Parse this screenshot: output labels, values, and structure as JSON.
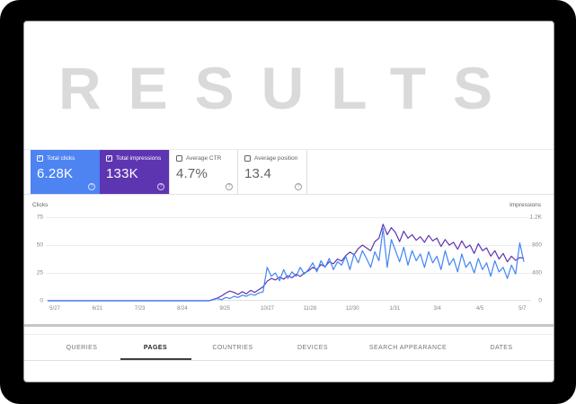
{
  "window": {
    "background": "#000000",
    "card_background": "#ffffff"
  },
  "watermark": {
    "text": "RESULTS",
    "color": "#dadada"
  },
  "metric_cards": [
    {
      "label": "Total clicks",
      "value": "6.28K",
      "checked": true,
      "bg": "#4d84f2",
      "text_color": "#ffffff"
    },
    {
      "label": "Total impressions",
      "value": "133K",
      "checked": true,
      "bg": "#5e35b1",
      "text_color": "#ffffff"
    },
    {
      "label": "Average CTR",
      "value": "4.7%",
      "checked": false,
      "bg": "#ffffff",
      "text_color": "#5f6368"
    },
    {
      "label": "Average position",
      "value": "13.4",
      "checked": false,
      "bg": "#ffffff",
      "text_color": "#5f6368"
    }
  ],
  "icons": {
    "help": "?",
    "checkbox_check": "✓"
  },
  "chart_data": {
    "type": "line",
    "dual_axis": true,
    "grid": true,
    "left_axis": {
      "label": "Clicks",
      "ticks": [
        "75",
        "50",
        "25",
        "0"
      ],
      "min": 0,
      "max": 75
    },
    "right_axis": {
      "label": "Impressions",
      "ticks": [
        "1.2K",
        "800",
        "400",
        "0"
      ],
      "min": 0,
      "max": 1200
    },
    "x_ticks": [
      "5/27",
      "6/21",
      "7/23",
      "8/24",
      "9/25",
      "10/27",
      "11/28",
      "12/30",
      "1/31",
      "3/4",
      "4/5",
      "5/7"
    ],
    "series": [
      {
        "name": "Total impressions",
        "axis": "right",
        "color": "#5e35b1",
        "values": [
          0,
          0,
          0,
          0,
          0,
          0,
          0,
          0,
          0,
          0,
          0,
          0,
          0,
          0,
          0,
          0,
          0,
          0,
          0,
          0,
          0,
          0,
          0,
          0,
          0,
          0,
          0,
          0,
          0,
          0,
          0,
          0,
          0,
          0,
          0,
          0,
          0,
          0,
          0,
          0,
          20,
          40,
          70,
          110,
          140,
          120,
          90,
          130,
          100,
          150,
          120,
          160,
          200,
          280,
          320,
          300,
          340,
          310,
          360,
          330,
          380,
          350,
          400,
          430,
          480,
          450,
          520,
          490,
          560,
          530,
          600,
          570,
          650,
          700,
          660,
          750,
          800,
          760,
          720,
          850,
          900,
          1100,
          950,
          1050,
          980,
          850,
          1000,
          900,
          950,
          870,
          920,
          840,
          940,
          860,
          900,
          780,
          880,
          800,
          840,
          740,
          860,
          760,
          800,
          680,
          820,
          720,
          760,
          640,
          720,
          600,
          680,
          560,
          640,
          580,
          620,
          610
        ]
      },
      {
        "name": "Total clicks",
        "axis": "left",
        "color": "#4285f4",
        "values": [
          0,
          0,
          0,
          0,
          0,
          0,
          0,
          0,
          0,
          0,
          0,
          0,
          0,
          0,
          0,
          0,
          0,
          0,
          0,
          0,
          0,
          0,
          0,
          0,
          0,
          0,
          0,
          0,
          0,
          0,
          0,
          0,
          0,
          0,
          0,
          0,
          0,
          0,
          0,
          0,
          1,
          2,
          1,
          3,
          2,
          4,
          3,
          5,
          4,
          6,
          5,
          7,
          8,
          30,
          22,
          25,
          18,
          28,
          20,
          26,
          22,
          30,
          24,
          28,
          34,
          26,
          36,
          30,
          38,
          28,
          35,
          32,
          40,
          28,
          42,
          34,
          45,
          38,
          30,
          44,
          36,
          65,
          30,
          55,
          45,
          35,
          48,
          32,
          45,
          36,
          42,
          30,
          44,
          34,
          40,
          28,
          45,
          32,
          38,
          26,
          42,
          30,
          35,
          25,
          38,
          28,
          34,
          22,
          36,
          26,
          30,
          20,
          32,
          24,
          52,
          35
        ]
      }
    ]
  },
  "tabs": [
    {
      "label": "QUERIES",
      "active": false
    },
    {
      "label": "PAGES",
      "active": true
    },
    {
      "label": "COUNTRIES",
      "active": false
    },
    {
      "label": "DEVICES",
      "active": false
    },
    {
      "label": "SEARCH APPEARANCE",
      "active": false
    },
    {
      "label": "DATES",
      "active": false
    }
  ]
}
